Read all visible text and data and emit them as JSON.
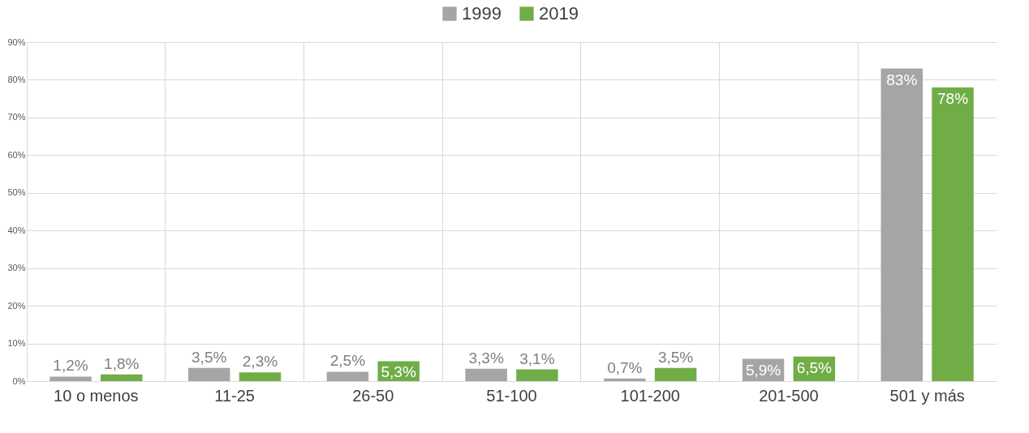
{
  "chart_data": {
    "type": "bar",
    "categories": [
      "10 o menos",
      "11-25",
      "26-50",
      "51-100",
      "101-200",
      "201-500",
      "501 y más"
    ],
    "series": [
      {
        "name": "1999",
        "color": "#a5a5a5",
        "values": [
          1.2,
          3.5,
          2.5,
          3.3,
          0.7,
          5.9,
          83
        ],
        "value_labels": [
          "1,2%",
          "3,5%",
          "2,5%",
          "3,3%",
          "0,7%",
          "5,9%",
          "83%"
        ]
      },
      {
        "name": "2019",
        "color": "#70ad47",
        "values": [
          1.8,
          2.3,
          5.3,
          3.1,
          3.5,
          6.5,
          78
        ],
        "value_labels": [
          "1,8%",
          "2,3%",
          "5,3%",
          "3,1%",
          "3,5%",
          "6,5%",
          "78%"
        ]
      }
    ],
    "ylim": [
      0,
      90
    ],
    "yticks": [
      {
        "value": 0,
        "label": "0%"
      },
      {
        "value": 10,
        "label": "10%"
      },
      {
        "value": 20,
        "label": "20%"
      },
      {
        "value": 30,
        "label": "30%"
      },
      {
        "value": 40,
        "label": "40%"
      },
      {
        "value": 50,
        "label": "50%"
      },
      {
        "value": 60,
        "label": "60%"
      },
      {
        "value": 70,
        "label": "70%"
      },
      {
        "value": 80,
        "label": "80%"
      },
      {
        "value": 90,
        "label": "90%"
      }
    ],
    "grid": true,
    "legend": "top"
  }
}
